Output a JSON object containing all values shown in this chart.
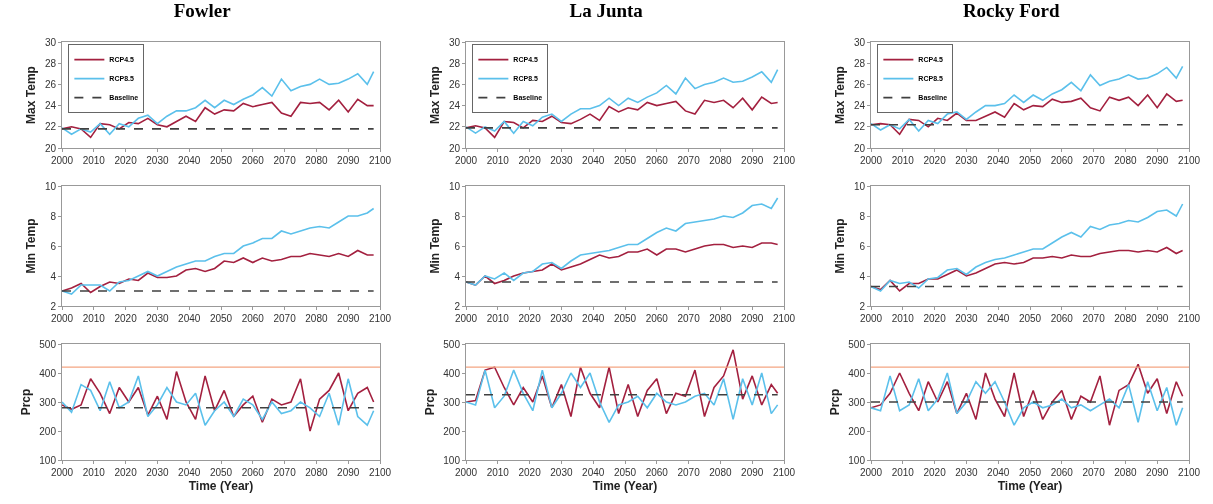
{
  "chart_data": [
    {
      "type": "line",
      "title": "Fowler",
      "ylabel": "Max Temp",
      "x": [
        2000,
        2003,
        2006,
        2009,
        2012,
        2015,
        2018,
        2021,
        2024,
        2027,
        2030,
        2033,
        2036,
        2039,
        2042,
        2045,
        2048,
        2051,
        2054,
        2057,
        2060,
        2063,
        2066,
        2069,
        2072,
        2075,
        2078,
        2081,
        2084,
        2087,
        2090,
        2093,
        2096,
        2098
      ],
      "xlim": [
        2000,
        2100
      ],
      "xticks": [
        2000,
        2010,
        2020,
        2030,
        2040,
        2050,
        2060,
        2070,
        2080,
        2090,
        2100
      ],
      "ylim": [
        20,
        30
      ],
      "yticks": [
        20,
        22,
        24,
        26,
        28,
        30
      ],
      "legend": "top left",
      "grid": false,
      "series": [
        {
          "name": "RCP4.5",
          "color": "#a3203f",
          "values": [
            21.8,
            22.0,
            21.8,
            21.0,
            22.3,
            22.2,
            21.8,
            22.4,
            22.3,
            22.8,
            22.2,
            22.0,
            22.5,
            23.0,
            22.5,
            23.8,
            23.2,
            23.6,
            23.5,
            24.2,
            23.9,
            24.1,
            24.3,
            23.3,
            23.0,
            24.3,
            24.2,
            24.3,
            23.6,
            24.5,
            23.4,
            24.6,
            24.0,
            24.0
          ]
        },
        {
          "name": "RCP8.5",
          "color": "#5bc0eb",
          "values": [
            21.9,
            21.3,
            21.8,
            21.5,
            22.3,
            21.3,
            22.3,
            22.0,
            22.8,
            23.1,
            22.3,
            23.0,
            23.5,
            23.5,
            23.8,
            24.5,
            23.8,
            24.5,
            24.1,
            24.6,
            25.0,
            25.7,
            24.9,
            26.5,
            25.4,
            25.8,
            26.0,
            26.5,
            26.0,
            26.1,
            26.5,
            27.0,
            26.0,
            27.2
          ]
        },
        {
          "name": "Baseline",
          "color": "#404040",
          "line_style": "dashed",
          "values": [
            21.8,
            21.8,
            21.8,
            21.8,
            21.8,
            21.8,
            21.8,
            21.8,
            21.8,
            21.8,
            21.8,
            21.8,
            21.8,
            21.8,
            21.8,
            21.8,
            21.8,
            21.8,
            21.8,
            21.8,
            21.8,
            21.8,
            21.8,
            21.8,
            21.8,
            21.8,
            21.8,
            21.8,
            21.8,
            21.8,
            21.8,
            21.8,
            21.8,
            21.8
          ]
        }
      ]
    },
    {
      "type": "line",
      "title": "La Junta",
      "ylabel": "Max Temp",
      "x": [
        2000,
        2003,
        2006,
        2009,
        2012,
        2015,
        2018,
        2021,
        2024,
        2027,
        2030,
        2033,
        2036,
        2039,
        2042,
        2045,
        2048,
        2051,
        2054,
        2057,
        2060,
        2063,
        2066,
        2069,
        2072,
        2075,
        2078,
        2081,
        2084,
        2087,
        2090,
        2093,
        2096,
        2098
      ],
      "xlim": [
        2000,
        2100
      ],
      "xticks": [
        2000,
        2010,
        2020,
        2030,
        2040,
        2050,
        2060,
        2070,
        2080,
        2090,
        2100
      ],
      "ylim": [
        20,
        30
      ],
      "yticks": [
        20,
        22,
        24,
        26,
        28,
        30
      ],
      "legend": "top left",
      "grid": false,
      "series": [
        {
          "name": "RCP4.5",
          "color": "#a3203f",
          "values": [
            21.9,
            22.1,
            21.9,
            21.0,
            22.5,
            22.4,
            21.9,
            22.6,
            22.5,
            23.0,
            22.4,
            22.3,
            22.7,
            23.2,
            22.6,
            23.9,
            23.4,
            23.8,
            23.6,
            24.3,
            24.0,
            24.2,
            24.4,
            23.5,
            23.2,
            24.5,
            24.3,
            24.5,
            23.8,
            24.7,
            23.6,
            24.8,
            24.2,
            24.3
          ]
        },
        {
          "name": "RCP8.5",
          "color": "#5bc0eb",
          "values": [
            22.0,
            21.4,
            22.0,
            21.6,
            22.5,
            21.4,
            22.5,
            22.1,
            22.9,
            23.2,
            22.5,
            23.2,
            23.7,
            23.7,
            24.0,
            24.7,
            24.0,
            24.7,
            24.3,
            24.8,
            25.2,
            25.9,
            25.1,
            26.6,
            25.6,
            26.0,
            26.2,
            26.6,
            26.2,
            26.3,
            26.7,
            27.2,
            26.2,
            27.4
          ]
        },
        {
          "name": "Baseline",
          "color": "#404040",
          "line_style": "dashed",
          "values": [
            21.9,
            21.9,
            21.9,
            21.9,
            21.9,
            21.9,
            21.9,
            21.9,
            21.9,
            21.9,
            21.9,
            21.9,
            21.9,
            21.9,
            21.9,
            21.9,
            21.9,
            21.9,
            21.9,
            21.9,
            21.9,
            21.9,
            21.9,
            21.9,
            21.9,
            21.9,
            21.9,
            21.9,
            21.9,
            21.9,
            21.9,
            21.9,
            21.9,
            21.9
          ]
        }
      ]
    },
    {
      "type": "line",
      "title": "Rocky Ford",
      "ylabel": "Max Temp",
      "x": [
        2000,
        2003,
        2006,
        2009,
        2012,
        2015,
        2018,
        2021,
        2024,
        2027,
        2030,
        2033,
        2036,
        2039,
        2042,
        2045,
        2048,
        2051,
        2054,
        2057,
        2060,
        2063,
        2066,
        2069,
        2072,
        2075,
        2078,
        2081,
        2084,
        2087,
        2090,
        2093,
        2096,
        2098
      ],
      "xlim": [
        2000,
        2100
      ],
      "xticks": [
        2000,
        2010,
        2020,
        2030,
        2040,
        2050,
        2060,
        2070,
        2080,
        2090,
        2100
      ],
      "ylim": [
        20,
        30
      ],
      "yticks": [
        20,
        22,
        24,
        26,
        28,
        30
      ],
      "legend": "top left",
      "grid": false,
      "series": [
        {
          "name": "RCP4.5",
          "color": "#a3203f",
          "values": [
            22.2,
            22.3,
            22.2,
            21.3,
            22.7,
            22.6,
            22.0,
            22.8,
            22.6,
            23.3,
            22.6,
            22.6,
            23.0,
            23.4,
            22.9,
            24.2,
            23.6,
            24.0,
            23.9,
            24.6,
            24.3,
            24.4,
            24.7,
            23.8,
            23.5,
            24.8,
            24.5,
            24.8,
            24.0,
            25.0,
            23.8,
            25.1,
            24.4,
            24.5
          ]
        },
        {
          "name": "RCP8.5",
          "color": "#5bc0eb",
          "values": [
            22.3,
            21.7,
            22.2,
            21.8,
            22.7,
            21.6,
            22.6,
            22.3,
            23.2,
            23.4,
            22.7,
            23.4,
            24.0,
            24.0,
            24.2,
            25.0,
            24.3,
            25.0,
            24.5,
            25.1,
            25.5,
            26.2,
            25.4,
            26.9,
            25.9,
            26.3,
            26.5,
            26.9,
            26.5,
            26.6,
            27.0,
            27.6,
            26.6,
            27.7
          ]
        },
        {
          "name": "Baseline",
          "color": "#404040",
          "line_style": "dashed",
          "values": [
            22.2,
            22.2,
            22.2,
            22.2,
            22.2,
            22.2,
            22.2,
            22.2,
            22.2,
            22.2,
            22.2,
            22.2,
            22.2,
            22.2,
            22.2,
            22.2,
            22.2,
            22.2,
            22.2,
            22.2,
            22.2,
            22.2,
            22.2,
            22.2,
            22.2,
            22.2,
            22.2,
            22.2,
            22.2,
            22.2,
            22.2,
            22.2,
            22.2,
            22.2
          ]
        }
      ]
    },
    {
      "type": "line",
      "ylabel": "Min Temp",
      "x": [
        2000,
        2003,
        2006,
        2009,
        2012,
        2015,
        2018,
        2021,
        2024,
        2027,
        2030,
        2033,
        2036,
        2039,
        2042,
        2045,
        2048,
        2051,
        2054,
        2057,
        2060,
        2063,
        2066,
        2069,
        2072,
        2075,
        2078,
        2081,
        2084,
        2087,
        2090,
        2093,
        2096,
        2098
      ],
      "xlim": [
        2000,
        2100
      ],
      "xticks": [
        2000,
        2010,
        2020,
        2030,
        2040,
        2050,
        2060,
        2070,
        2080,
        2090,
        2100
      ],
      "ylim": [
        2,
        10
      ],
      "yticks": [
        2,
        4,
        6,
        8,
        10
      ],
      "grid": false,
      "series": [
        {
          "color": "#a3203f",
          "values": [
            3.0,
            3.2,
            3.5,
            2.9,
            3.3,
            3.6,
            3.5,
            3.8,
            3.7,
            4.2,
            3.9,
            3.9,
            4.0,
            4.4,
            4.5,
            4.3,
            4.5,
            5.0,
            4.9,
            5.2,
            4.9,
            5.2,
            5.0,
            5.1,
            5.3,
            5.3,
            5.5,
            5.4,
            5.3,
            5.5,
            5.3,
            5.7,
            5.4,
            5.4
          ]
        },
        {
          "color": "#5bc0eb",
          "values": [
            3.0,
            2.8,
            3.4,
            3.4,
            3.4,
            3.0,
            3.6,
            3.7,
            4.0,
            4.3,
            4.0,
            4.3,
            4.6,
            4.8,
            5.0,
            5.0,
            5.3,
            5.5,
            5.5,
            6.0,
            6.2,
            6.5,
            6.5,
            7.0,
            6.8,
            7.0,
            7.2,
            7.3,
            7.2,
            7.6,
            8.0,
            8.0,
            8.2,
            8.5
          ]
        },
        {
          "color": "#404040",
          "line_style": "dashed",
          "values": [
            3.0,
            3.0,
            3.0,
            3.0,
            3.0,
            3.0,
            3.0,
            3.0,
            3.0,
            3.0,
            3.0,
            3.0,
            3.0,
            3.0,
            3.0,
            3.0,
            3.0,
            3.0,
            3.0,
            3.0,
            3.0,
            3.0,
            3.0,
            3.0,
            3.0,
            3.0,
            3.0,
            3.0,
            3.0,
            3.0,
            3.0,
            3.0,
            3.0,
            3.0
          ]
        }
      ]
    },
    {
      "type": "line",
      "ylabel": "Min Temp",
      "x": [
        2000,
        2003,
        2006,
        2009,
        2012,
        2015,
        2018,
        2021,
        2024,
        2027,
        2030,
        2033,
        2036,
        2039,
        2042,
        2045,
        2048,
        2051,
        2054,
        2057,
        2060,
        2063,
        2066,
        2069,
        2072,
        2075,
        2078,
        2081,
        2084,
        2087,
        2090,
        2093,
        2096,
        2098
      ],
      "xlim": [
        2000,
        2100
      ],
      "xticks": [
        2000,
        2010,
        2020,
        2030,
        2040,
        2050,
        2060,
        2070,
        2080,
        2090,
        2100
      ],
      "ylim": [
        2,
        10
      ],
      "yticks": [
        2,
        4,
        6,
        8,
        10
      ],
      "grid": false,
      "series": [
        {
          "color": "#a3203f",
          "values": [
            3.6,
            3.4,
            4.0,
            3.5,
            3.7,
            4.0,
            4.2,
            4.3,
            4.4,
            4.8,
            4.4,
            4.6,
            4.8,
            5.1,
            5.4,
            5.2,
            5.3,
            5.6,
            5.6,
            5.8,
            5.4,
            5.8,
            5.8,
            5.6,
            5.8,
            6.0,
            6.1,
            6.1,
            5.9,
            6.0,
            5.9,
            6.2,
            6.2,
            6.1
          ]
        },
        {
          "color": "#5bc0eb",
          "values": [
            3.6,
            3.4,
            4.0,
            3.8,
            4.2,
            3.7,
            4.2,
            4.3,
            4.8,
            4.9,
            4.5,
            5.0,
            5.4,
            5.5,
            5.6,
            5.7,
            5.9,
            6.1,
            6.1,
            6.5,
            6.9,
            7.2,
            7.0,
            7.5,
            7.6,
            7.7,
            7.8,
            8.0,
            7.9,
            8.2,
            8.7,
            8.8,
            8.5,
            9.2
          ]
        },
        {
          "color": "#404040",
          "line_style": "dashed",
          "values": [
            3.6,
            3.6,
            3.6,
            3.6,
            3.6,
            3.6,
            3.6,
            3.6,
            3.6,
            3.6,
            3.6,
            3.6,
            3.6,
            3.6,
            3.6,
            3.6,
            3.6,
            3.6,
            3.6,
            3.6,
            3.6,
            3.6,
            3.6,
            3.6,
            3.6,
            3.6,
            3.6,
            3.6,
            3.6,
            3.6,
            3.6,
            3.6,
            3.6,
            3.6
          ]
        }
      ]
    },
    {
      "type": "line",
      "ylabel": "Min Temp",
      "x": [
        2000,
        2003,
        2006,
        2009,
        2012,
        2015,
        2018,
        2021,
        2024,
        2027,
        2030,
        2033,
        2036,
        2039,
        2042,
        2045,
        2048,
        2051,
        2054,
        2057,
        2060,
        2063,
        2066,
        2069,
        2072,
        2075,
        2078,
        2081,
        2084,
        2087,
        2090,
        2093,
        2096,
        2098
      ],
      "xlim": [
        2000,
        2100
      ],
      "xticks": [
        2000,
        2010,
        2020,
        2030,
        2040,
        2050,
        2060,
        2070,
        2080,
        2090,
        2100
      ],
      "ylim": [
        2,
        10
      ],
      "yticks": [
        2,
        4,
        6,
        8,
        10
      ],
      "grid": false,
      "series": [
        {
          "color": "#a3203f",
          "values": [
            3.3,
            3.1,
            3.7,
            3.0,
            3.5,
            3.5,
            3.8,
            3.8,
            4.1,
            4.4,
            4.0,
            4.2,
            4.5,
            4.8,
            4.9,
            4.8,
            4.9,
            5.2,
            5.2,
            5.3,
            5.2,
            5.4,
            5.3,
            5.3,
            5.5,
            5.6,
            5.7,
            5.7,
            5.6,
            5.7,
            5.6,
            5.9,
            5.5,
            5.7
          ]
        },
        {
          "color": "#5bc0eb",
          "values": [
            3.3,
            3.0,
            3.7,
            3.5,
            3.6,
            3.2,
            3.8,
            3.9,
            4.4,
            4.5,
            4.1,
            4.6,
            4.9,
            5.1,
            5.2,
            5.4,
            5.6,
            5.8,
            5.8,
            6.2,
            6.6,
            6.9,
            6.6,
            7.3,
            7.1,
            7.4,
            7.5,
            7.7,
            7.6,
            7.9,
            8.3,
            8.4,
            8.0,
            8.8
          ]
        },
        {
          "color": "#404040",
          "line_style": "dashed",
          "values": [
            3.3,
            3.3,
            3.3,
            3.3,
            3.3,
            3.3,
            3.3,
            3.3,
            3.3,
            3.3,
            3.3,
            3.3,
            3.3,
            3.3,
            3.3,
            3.3,
            3.3,
            3.3,
            3.3,
            3.3,
            3.3,
            3.3,
            3.3,
            3.3,
            3.3,
            3.3,
            3.3,
            3.3,
            3.3,
            3.3,
            3.3,
            3.3,
            3.3,
            3.3
          ]
        }
      ]
    },
    {
      "type": "line",
      "ylabel": "Prcp",
      "xlabel": "Time (Year)",
      "x": [
        2000,
        2003,
        2006,
        2009,
        2012,
        2015,
        2018,
        2021,
        2024,
        2027,
        2030,
        2033,
        2036,
        2039,
        2042,
        2045,
        2048,
        2051,
        2054,
        2057,
        2060,
        2063,
        2066,
        2069,
        2072,
        2075,
        2078,
        2081,
        2084,
        2087,
        2090,
        2093,
        2096,
        2098
      ],
      "xlim": [
        2000,
        2100
      ],
      "xticks": [
        2000,
        2010,
        2020,
        2030,
        2040,
        2050,
        2060,
        2070,
        2080,
        2090,
        2100
      ],
      "ylim": [
        100,
        500
      ],
      "yticks": [
        100,
        200,
        300,
        400,
        500
      ],
      "grid": false,
      "ref_lines": [
        {
          "axis": "y",
          "value": 420,
          "color": "#f4a582"
        }
      ],
      "series": [
        {
          "color": "#a3203f",
          "values": [
            290,
            275,
            290,
            380,
            330,
            260,
            350,
            300,
            350,
            255,
            320,
            240,
            405,
            300,
            240,
            390,
            270,
            340,
            250,
            290,
            320,
            230,
            310,
            290,
            300,
            380,
            200,
            310,
            340,
            400,
            270,
            330,
            350,
            300
          ]
        },
        {
          "color": "#5bc0eb",
          "values": [
            300,
            265,
            360,
            340,
            270,
            370,
            280,
            300,
            390,
            250,
            290,
            350,
            300,
            290,
            330,
            220,
            270,
            300,
            250,
            310,
            290,
            240,
            300,
            260,
            270,
            300,
            280,
            250,
            330,
            220,
            380,
            250,
            220,
            270
          ]
        },
        {
          "color": "#404040",
          "line_style": "dashed",
          "values": [
            280,
            280,
            280,
            280,
            280,
            280,
            280,
            280,
            280,
            280,
            280,
            280,
            280,
            280,
            280,
            280,
            280,
            280,
            280,
            280,
            280,
            280,
            280,
            280,
            280,
            280,
            280,
            280,
            280,
            280,
            280,
            280,
            280,
            280
          ]
        }
      ]
    },
    {
      "type": "line",
      "ylabel": "Prcp",
      "xlabel": "Time (Year)",
      "x": [
        2000,
        2003,
        2006,
        2009,
        2012,
        2015,
        2018,
        2021,
        2024,
        2027,
        2030,
        2033,
        2036,
        2039,
        2042,
        2045,
        2048,
        2051,
        2054,
        2057,
        2060,
        2063,
        2066,
        2069,
        2072,
        2075,
        2078,
        2081,
        2084,
        2087,
        2090,
        2093,
        2096,
        2098
      ],
      "xlim": [
        2000,
        2100
      ],
      "xticks": [
        2000,
        2010,
        2020,
        2030,
        2040,
        2050,
        2060,
        2070,
        2080,
        2090,
        2100
      ],
      "ylim": [
        100,
        500
      ],
      "yticks": [
        100,
        200,
        300,
        400,
        500
      ],
      "grid": false,
      "ref_lines": [
        {
          "axis": "y",
          "value": 420,
          "color": "#f4a582"
        }
      ],
      "series": [
        {
          "color": "#a3203f",
          "values": [
            300,
            305,
            410,
            420,
            350,
            290,
            350,
            300,
            390,
            280,
            360,
            250,
            420,
            330,
            280,
            420,
            260,
            360,
            250,
            340,
            380,
            260,
            330,
            320,
            410,
            250,
            350,
            390,
            480,
            310,
            390,
            290,
            360,
            330
          ]
        },
        {
          "color": "#5bc0eb",
          "values": [
            300,
            290,
            410,
            280,
            320,
            410,
            330,
            270,
            410,
            280,
            330,
            400,
            350,
            400,
            300,
            230,
            290,
            300,
            320,
            280,
            330,
            300,
            290,
            300,
            320,
            330,
            290,
            380,
            240,
            380,
            290,
            400,
            260,
            290
          ]
        },
        {
          "color": "#404040",
          "line_style": "dashed",
          "values": [
            325,
            325,
            325,
            325,
            325,
            325,
            325,
            325,
            325,
            325,
            325,
            325,
            325,
            325,
            325,
            325,
            325,
            325,
            325,
            325,
            325,
            325,
            325,
            325,
            325,
            325,
            325,
            325,
            325,
            325,
            325,
            325,
            325,
            325
          ]
        }
      ]
    },
    {
      "type": "line",
      "ylabel": "Prcp",
      "xlabel": "Time (Year)",
      "x": [
        2000,
        2003,
        2006,
        2009,
        2012,
        2015,
        2018,
        2021,
        2024,
        2027,
        2030,
        2033,
        2036,
        2039,
        2042,
        2045,
        2048,
        2051,
        2054,
        2057,
        2060,
        2063,
        2066,
        2069,
        2072,
        2075,
        2078,
        2081,
        2084,
        2087,
        2090,
        2093,
        2096,
        2098
      ],
      "xlim": [
        2000,
        2100
      ],
      "xticks": [
        2000,
        2010,
        2020,
        2030,
        2040,
        2050,
        2060,
        2070,
        2080,
        2090,
        2100
      ],
      "ylim": [
        100,
        500
      ],
      "yticks": [
        100,
        200,
        300,
        400,
        500
      ],
      "grid": false,
      "ref_lines": [
        {
          "axis": "y",
          "value": 420,
          "color": "#f4a582"
        }
      ],
      "series": [
        {
          "color": "#a3203f",
          "values": [
            280,
            290,
            330,
            400,
            330,
            270,
            370,
            300,
            370,
            260,
            330,
            240,
            400,
            310,
            250,
            400,
            250,
            340,
            240,
            300,
            340,
            240,
            320,
            300,
            390,
            220,
            340,
            360,
            430,
            330,
            380,
            260,
            370,
            320
          ]
        },
        {
          "color": "#5bc0eb",
          "values": [
            280,
            270,
            390,
            270,
            290,
            380,
            270,
            310,
            400,
            260,
            300,
            370,
            330,
            370,
            300,
            220,
            280,
            300,
            280,
            290,
            310,
            280,
            290,
            270,
            290,
            310,
            280,
            360,
            230,
            370,
            270,
            350,
            220,
            280
          ]
        },
        {
          "color": "#404040",
          "line_style": "dashed",
          "values": [
            300,
            300,
            300,
            300,
            300,
            300,
            300,
            300,
            300,
            300,
            300,
            300,
            300,
            300,
            300,
            300,
            300,
            300,
            300,
            300,
            300,
            300,
            300,
            300,
            300,
            300,
            300,
            300,
            300,
            300,
            300,
            300,
            300,
            300
          ]
        }
      ]
    }
  ]
}
